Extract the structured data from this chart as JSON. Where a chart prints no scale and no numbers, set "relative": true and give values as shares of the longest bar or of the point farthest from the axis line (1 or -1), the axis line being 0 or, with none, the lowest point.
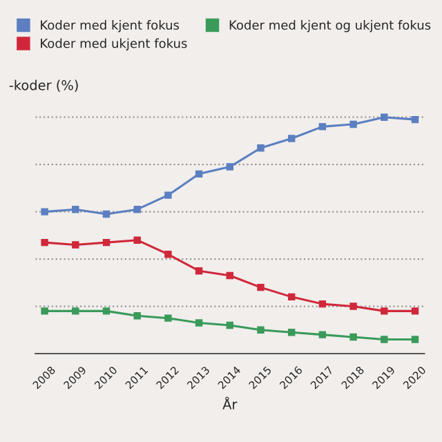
{
  "chart_data": {
    "type": "line",
    "relative": true,
    "xlabel": "År",
    "ylabel": "-koder (%)",
    "categories": [
      "2008",
      "2009",
      "2010",
      "2011",
      "2012",
      "2013",
      "2014",
      "2015",
      "2016",
      "2017",
      "2018",
      "2019",
      "2020"
    ],
    "series": [
      {
        "name": "Koder med kjent fokus",
        "color": "#5b7fc0",
        "values": [
          0.6,
          0.61,
          0.59,
          0.61,
          0.67,
          0.76,
          0.79,
          0.87,
          0.91,
          0.96,
          0.97,
          1,
          0.99
        ]
      },
      {
        "name": "Koder med ukjent fokus",
        "color": "#d0283a",
        "values": [
          0.47,
          0.46,
          0.47,
          0.48,
          0.42,
          0.35,
          0.33,
          0.28,
          0.24,
          0.21,
          0.2,
          0.18,
          0.18
        ]
      },
      {
        "name": "Koder med kjent og ukjent fokus",
        "color": "#3a9a5a",
        "values": [
          0.18,
          0.18,
          0.18,
          0.16,
          0.15,
          0.13,
          0.12,
          0.1,
          0.09,
          0.08,
          0.07,
          0.06,
          0.06
        ]
      }
    ],
    "marker": "square",
    "line_style": "solid",
    "grid": "y",
    "legend": "top"
  }
}
